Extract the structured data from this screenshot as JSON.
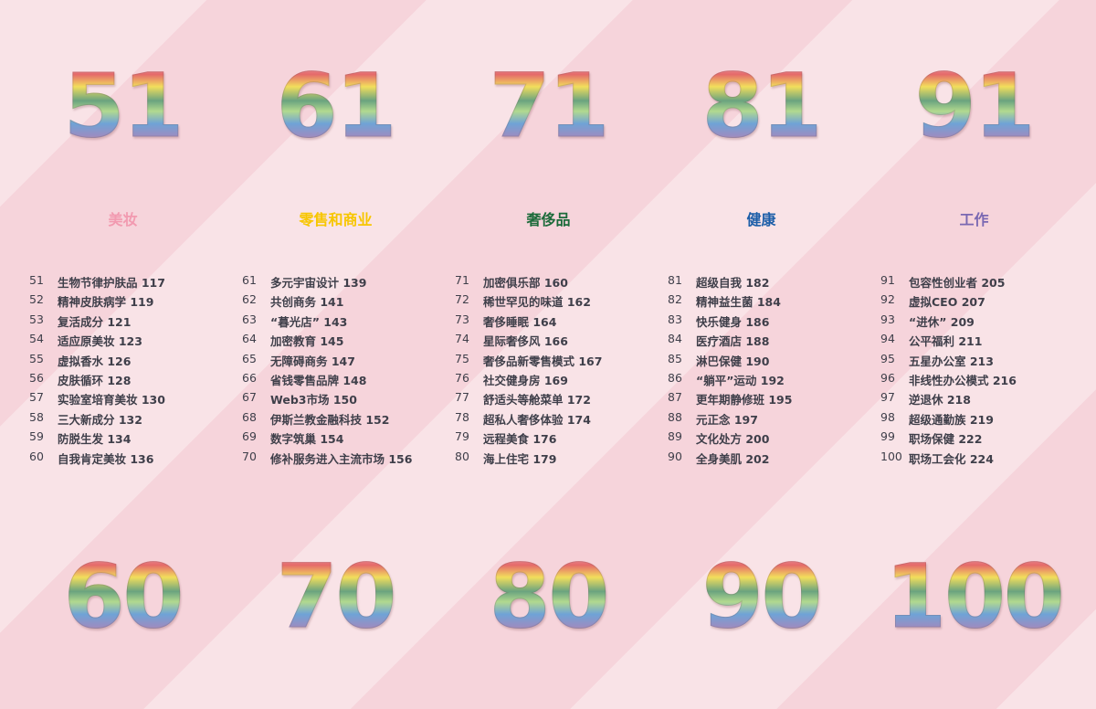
{
  "columns": [
    {
      "top_number": "51",
      "bottom_number": "60",
      "category": "美妆",
      "color": "#f29ab0",
      "items": [
        [
          "51",
          "生物节律护肤品 117"
        ],
        [
          "52",
          "精神皮肤病学 119"
        ],
        [
          "53",
          "复活成分 121"
        ],
        [
          "54",
          "适应原美妆 123"
        ],
        [
          "55",
          "虚拟香水 126"
        ],
        [
          "56",
          "皮肤循环 128"
        ],
        [
          "57",
          "实验室培育美妆 130"
        ],
        [
          "58",
          "三大新成分 132"
        ],
        [
          "59",
          "防脱生发 134"
        ],
        [
          "60",
          "自我肯定美妆 136"
        ]
      ]
    },
    {
      "top_number": "61",
      "bottom_number": "70",
      "category": "零售和商业",
      "color": "#f7c600",
      "items": [
        [
          "61",
          "多元宇宙设计 139"
        ],
        [
          "62",
          "共创商务 141"
        ],
        [
          "63",
          "“暮光店” 143"
        ],
        [
          "64",
          "加密教育 145"
        ],
        [
          "65",
          "无障碍商务 147"
        ],
        [
          "66",
          "省钱零售品牌 148"
        ],
        [
          "67",
          "Web3市场 150"
        ],
        [
          "68",
          "伊斯兰教金融科技 152"
        ],
        [
          "69",
          "数字筑巢 154"
        ],
        [
          "70",
          "修补服务进入主流市场 156"
        ]
      ]
    },
    {
      "top_number": "71",
      "bottom_number": "80",
      "category": "奢侈品",
      "color": "#1d6b3b",
      "items": [
        [
          "71",
          "加密俱乐部 160"
        ],
        [
          "72",
          "稀世罕见的味道 162"
        ],
        [
          "73",
          "奢侈睡眠 164"
        ],
        [
          "74",
          "星际奢侈风 166"
        ],
        [
          "75",
          "奢侈品新零售模式 167"
        ],
        [
          "76",
          "社交健身房 169"
        ],
        [
          "77",
          "舒适头等舱菜单 172"
        ],
        [
          "78",
          "超私人奢侈体验 174"
        ],
        [
          "79",
          "远程美食 176"
        ],
        [
          "80",
          "海上住宅 179"
        ]
      ]
    },
    {
      "top_number": "81",
      "bottom_number": "90",
      "category": "健康",
      "color": "#1c5ea8",
      "items": [
        [
          "81",
          "超级自我 182"
        ],
        [
          "82",
          "精神益生菌 184"
        ],
        [
          "83",
          "快乐健身 186"
        ],
        [
          "84",
          "医疗酒店 188"
        ],
        [
          "85",
          "淋巴保健 190"
        ],
        [
          "86",
          "“躺平”运动 192"
        ],
        [
          "87",
          "更年期静修班 195"
        ],
        [
          "88",
          "元正念 197"
        ],
        [
          "89",
          "文化处方 200"
        ],
        [
          "90",
          "全身美肌 202"
        ]
      ]
    },
    {
      "top_number": "91",
      "bottom_number": "100",
      "category": "工作",
      "color": "#7a68b2",
      "items": [
        [
          "91",
          "包容性创业者 205"
        ],
        [
          "92",
          "虚拟CEO 207"
        ],
        [
          "93",
          "“进休” 209"
        ],
        [
          "94",
          "公平福利 211"
        ],
        [
          "95",
          "五星办公室 213"
        ],
        [
          "96",
          "非线性办公模式 216"
        ],
        [
          "97",
          "逆退休 218"
        ],
        [
          "98",
          "超级通勤族 219"
        ],
        [
          "99",
          "职场保健 222"
        ],
        [
          "100",
          "职场工会化 224"
        ]
      ]
    }
  ]
}
